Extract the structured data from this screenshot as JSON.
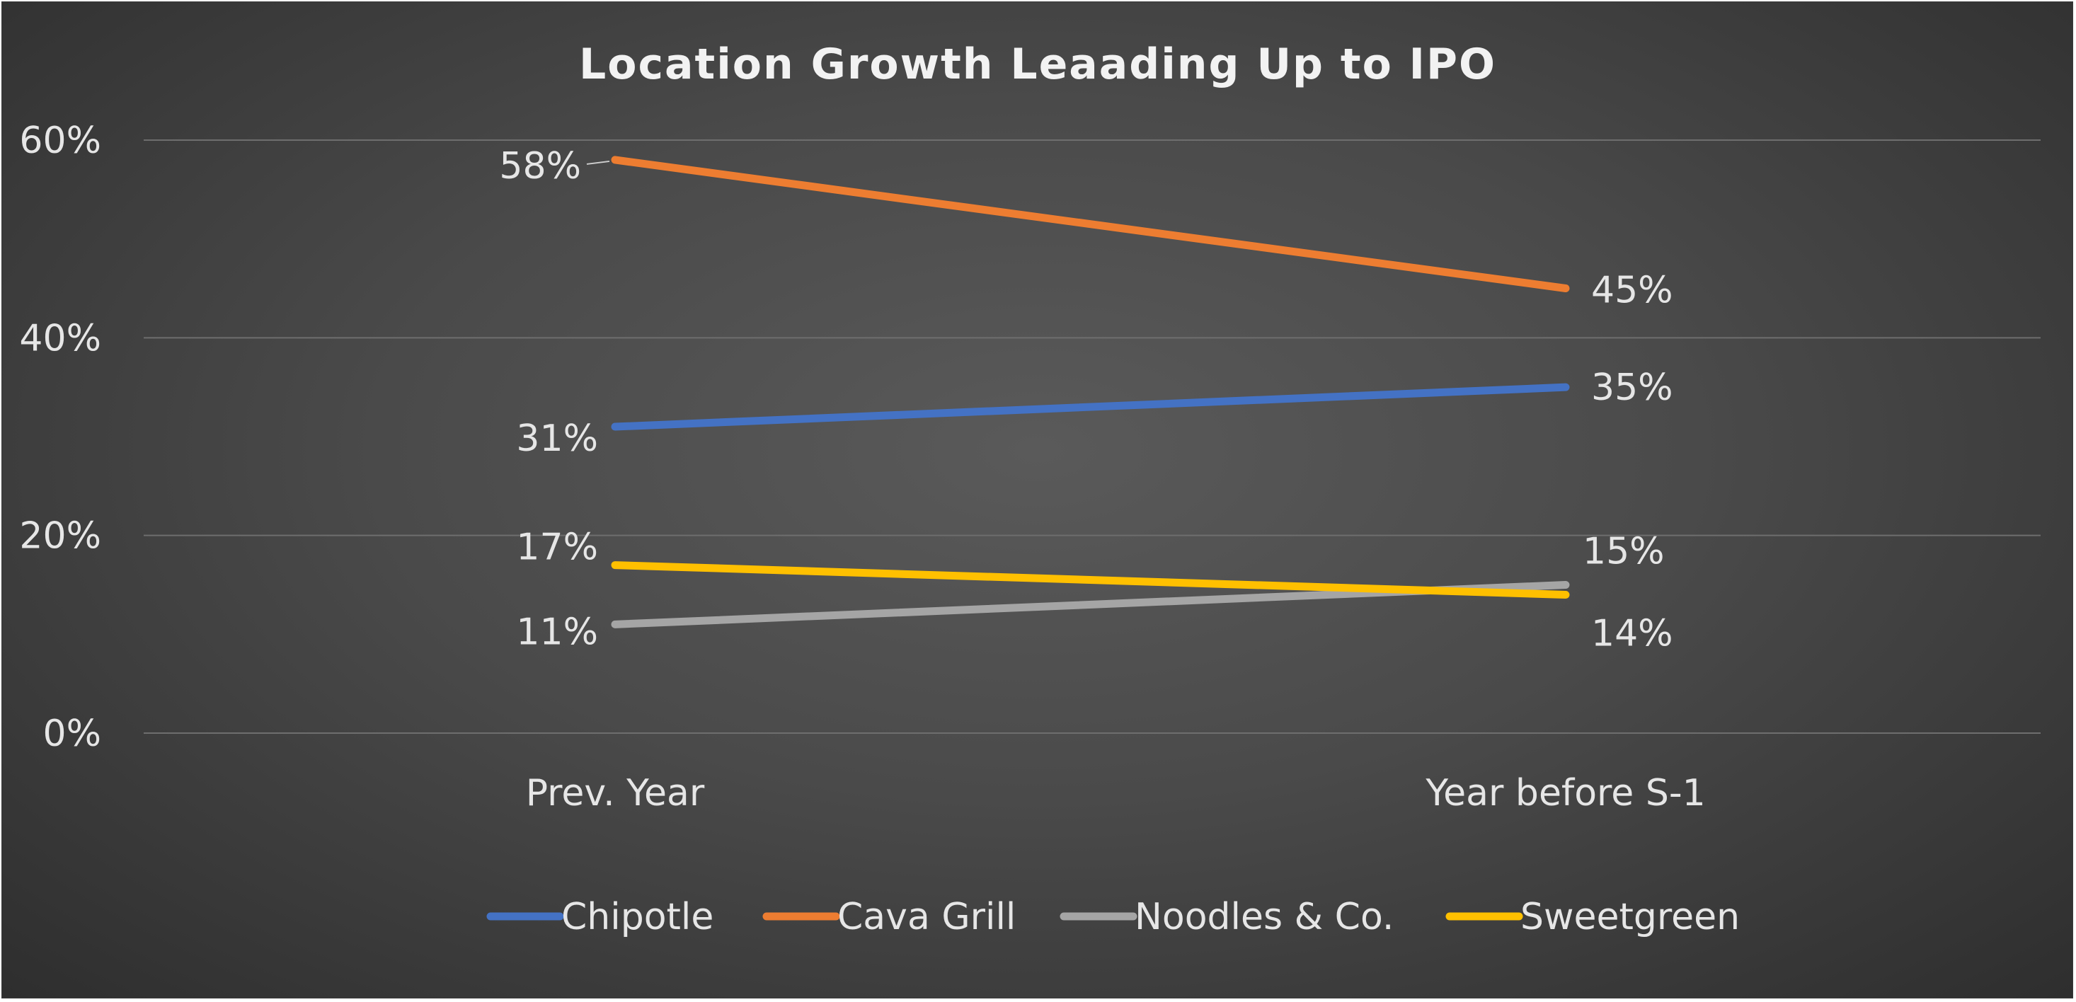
{
  "chart_data": {
    "type": "line",
    "title": "Location Growth Leaading Up to IPO",
    "categories": [
      "Prev. Year",
      "Year before S-1"
    ],
    "ylim": [
      0,
      60
    ],
    "yticks": [
      0,
      20,
      40,
      60
    ],
    "ytick_labels": [
      "0%",
      "20%",
      "40%",
      "60%"
    ],
    "grid": true,
    "legend_position": "bottom",
    "series": [
      {
        "name": "Chipotle",
        "color": "#4472C4",
        "values": [
          31,
          35
        ],
        "labels": [
          "31%",
          "35%"
        ]
      },
      {
        "name": "Cava Grill",
        "color": "#ED7D31",
        "values": [
          58,
          45
        ],
        "labels": [
          "58%",
          "45%"
        ]
      },
      {
        "name": "Noodles & Co.",
        "color": "#A5A5A5",
        "values": [
          11,
          15
        ],
        "labels": [
          "11%",
          "15%"
        ]
      },
      {
        "name": "Sweetgreen",
        "color": "#FFC000",
        "values": [
          17,
          14
        ],
        "labels": [
          "17%",
          "14%"
        ]
      }
    ]
  }
}
